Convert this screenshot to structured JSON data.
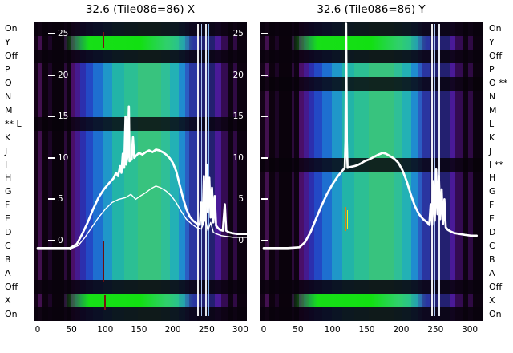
{
  "titles": {
    "left": "32.6 (Tile086=86) X",
    "right": "32.6 (Tile086=86) Y"
  },
  "colors": {
    "curve": "#ffffff",
    "bright_green": "#17df17",
    "bright_green2": "#12e012",
    "green_soft": "#2fd06a",
    "dark_overlay": "rgba(9,2,13,0.88)",
    "masked_overlay": "rgba(7,2,10,0.82)",
    "background": "#ffffff",
    "text": "#000000",
    "tick_text": "#ffffff"
  },
  "chart_data": {
    "type": "heatmap",
    "description": "Two tile-scan heatmaps (X and Y) with overlaid white profile curves; channel rows labeled On/Y/Off/P..A/Off/X/On, ** marks masked channels",
    "x_axis": {
      "ticks": [
        0,
        50,
        100,
        150,
        200,
        250,
        300
      ],
      "range": [
        0,
        310
      ]
    },
    "y_axis": {
      "ticks": [
        25,
        20,
        15,
        10,
        5,
        0
      ],
      "range": [
        -2,
        27
      ]
    },
    "rows_top_to_bottom": [
      "On",
      "Y",
      "Off",
      "P",
      "O",
      "N",
      "M",
      "L",
      "K",
      "J",
      "I",
      "H",
      "G",
      "F",
      "E",
      "D",
      "C",
      "B",
      "A",
      "Off",
      "X",
      "On"
    ],
    "row_labels_left_display": [
      "On",
      "Y",
      "Off",
      "P",
      "O",
      "N",
      "M",
      "** L",
      "K",
      "J",
      "I",
      "H",
      "G",
      "F",
      "E",
      "D",
      "C",
      "B",
      "A",
      "Off",
      "X",
      "On"
    ],
    "row_labels_right_display": [
      "On",
      "Y",
      "Off",
      "P",
      "O **",
      "N",
      "M",
      "L",
      "K",
      "J",
      "I **",
      "H",
      "G",
      "F",
      "E",
      "D",
      "C",
      "B",
      "A",
      "Off",
      "X",
      "On"
    ],
    "colormap_stripes": [
      {
        "w": 0.02,
        "c": "#140318"
      },
      {
        "w": 0.018,
        "c": "#42104f"
      },
      {
        "w": 0.03,
        "c": "#0d020f"
      },
      {
        "w": 0.02,
        "c": "#1c0526"
      },
      {
        "w": 0.055,
        "c": "#0a020c"
      },
      {
        "w": 0.012,
        "c": "#2b0a3a"
      },
      {
        "w": 0.02,
        "c": "#0e0312"
      },
      {
        "w": 0.022,
        "c": "#4a0f68"
      },
      {
        "w": 0.022,
        "c": "#451a8f"
      },
      {
        "w": 0.025,
        "c": "#2c2fae"
      },
      {
        "w": 0.035,
        "c": "#2349c5"
      },
      {
        "w": 0.045,
        "c": "#1e6fd0"
      },
      {
        "w": 0.045,
        "c": "#1f97c9"
      },
      {
        "w": 0.055,
        "c": "#22b4a8"
      },
      {
        "w": 0.065,
        "c": "#2cbf94"
      },
      {
        "w": 0.11,
        "c": "#38c37e"
      },
      {
        "w": 0.04,
        "c": "#2fbf97"
      },
      {
        "w": 0.04,
        "c": "#23b1b5"
      },
      {
        "w": 0.03,
        "c": "#1f8ccf"
      },
      {
        "w": 0.022,
        "c": "#2b5dc3"
      },
      {
        "w": 0.035,
        "c": "#2a35a0"
      },
      {
        "w": 0.085,
        "c": "#232070"
      },
      {
        "w": 0.028,
        "c": "#4a1a98"
      },
      {
        "w": 0.03,
        "c": "#340b52"
      },
      {
        "w": 0.026,
        "c": "#0e0313"
      },
      {
        "w": 0.02,
        "c": "#2f0a44"
      },
      {
        "w": 0.045,
        "c": "#0c0210"
      }
    ],
    "bright_vlines": [
      {
        "x": 0.768,
        "c": "#ffffff",
        "w": 2
      },
      {
        "x": 0.785,
        "c": "#b9d2ff",
        "w": 1
      },
      {
        "x": 0.803,
        "c": "#f4f8ff",
        "w": 2
      },
      {
        "x": 0.818,
        "c": "#8fc6ff",
        "w": 1
      },
      {
        "x": 0.833,
        "c": "#dfe8ff",
        "w": 1
      }
    ],
    "panels": [
      {
        "id": "X",
        "title": "32.6 (Tile086=86) X",
        "masked_rows": [
          "L"
        ],
        "marks": [
          {
            "x": 0.325,
            "y1": 0.033,
            "y2": 0.085,
            "c": "#7a1111",
            "w": 2
          },
          {
            "x": 0.325,
            "y1": 0.73,
            "y2": 0.87,
            "c": "#6b0f0f",
            "w": 2
          },
          {
            "x": 0.33,
            "y1": 0.915,
            "y2": 0.965,
            "c": "#7a1111",
            "w": 2
          }
        ],
        "profile_main": [
          [
            0,
            -0.9
          ],
          [
            30,
            -0.9
          ],
          [
            48,
            -0.9
          ],
          [
            58,
            -0.4
          ],
          [
            66,
            0.8
          ],
          [
            74,
            2.2
          ],
          [
            82,
            3.8
          ],
          [
            90,
            5.2
          ],
          [
            98,
            6.2
          ],
          [
            106,
            7.0
          ],
          [
            112,
            7.5
          ],
          [
            116,
            8.2
          ],
          [
            119,
            7.8
          ],
          [
            122,
            9.0
          ],
          [
            124,
            8.2
          ],
          [
            126,
            10.5
          ],
          [
            128,
            8.8
          ],
          [
            130,
            15.0
          ],
          [
            131,
            9.2
          ],
          [
            133,
            10.2
          ],
          [
            135,
            16.2
          ],
          [
            136,
            9.6
          ],
          [
            139,
            9.8
          ],
          [
            141,
            12.5
          ],
          [
            143,
            10.0
          ],
          [
            146,
            10.3
          ],
          [
            150,
            10.6
          ],
          [
            155,
            10.4
          ],
          [
            160,
            10.7
          ],
          [
            165,
            10.9
          ],
          [
            170,
            10.7
          ],
          [
            175,
            11.0
          ],
          [
            180,
            10.9
          ],
          [
            185,
            10.7
          ],
          [
            190,
            10.4
          ],
          [
            195,
            10.0
          ],
          [
            200,
            9.4
          ],
          [
            205,
            8.4
          ],
          [
            210,
            6.8
          ],
          [
            215,
            5.2
          ],
          [
            220,
            3.8
          ],
          [
            225,
            2.9
          ],
          [
            230,
            2.4
          ],
          [
            235,
            2.1
          ],
          [
            240,
            1.9
          ],
          [
            242,
            4.6
          ],
          [
            244,
            2.0
          ],
          [
            246,
            7.8
          ],
          [
            248,
            2.6
          ],
          [
            250,
            9.2
          ],
          [
            252,
            3.4
          ],
          [
            254,
            7.6
          ],
          [
            256,
            2.8
          ],
          [
            258,
            6.4
          ],
          [
            260,
            2.2
          ],
          [
            262,
            5.4
          ],
          [
            264,
            1.8
          ],
          [
            267,
            1.5
          ],
          [
            270,
            1.3
          ],
          [
            274,
            1.2
          ],
          [
            277,
            4.4
          ],
          [
            279,
            1.2
          ],
          [
            283,
            1.0
          ],
          [
            288,
            0.9
          ],
          [
            295,
            0.8
          ],
          [
            303,
            0.8
          ],
          [
            310,
            0.8
          ]
        ],
        "profile_secondary": [
          [
            48,
            -1.0
          ],
          [
            60,
            -0.6
          ],
          [
            70,
            0.4
          ],
          [
            80,
            1.6
          ],
          [
            90,
            2.8
          ],
          [
            100,
            3.8
          ],
          [
            110,
            4.6
          ],
          [
            120,
            5.0
          ],
          [
            130,
            5.2
          ],
          [
            138,
            5.6
          ],
          [
            145,
            5.0
          ],
          [
            152,
            5.4
          ],
          [
            160,
            5.8
          ],
          [
            168,
            6.3
          ],
          [
            175,
            6.6
          ],
          [
            182,
            6.4
          ],
          [
            190,
            6.0
          ],
          [
            198,
            5.4
          ],
          [
            205,
            4.6
          ],
          [
            212,
            3.6
          ],
          [
            220,
            2.6
          ],
          [
            228,
            2.0
          ],
          [
            235,
            1.6
          ],
          [
            242,
            1.4
          ],
          [
            248,
            2.6
          ],
          [
            252,
            1.2
          ],
          [
            256,
            2.2
          ],
          [
            260,
            1.0
          ],
          [
            265,
            0.8
          ],
          [
            272,
            0.6
          ],
          [
            280,
            0.5
          ],
          [
            290,
            0.4
          ],
          [
            300,
            0.4
          ],
          [
            310,
            0.4
          ]
        ]
      },
      {
        "id": "Y",
        "title": "32.6 (Tile086=86) Y",
        "masked_rows": [
          "O",
          "I"
        ],
        "marks": [
          {
            "x": 0.381,
            "y1": 0.618,
            "y2": 0.7,
            "c": "#e07c14",
            "w": 2
          },
          {
            "x": 0.392,
            "y1": 0.63,
            "y2": 0.69,
            "c": "#ffe814",
            "w": 1
          }
        ],
        "profile_main": [
          [
            0,
            -0.9
          ],
          [
            35,
            -0.9
          ],
          [
            52,
            -0.8
          ],
          [
            60,
            -0.2
          ],
          [
            68,
            1.0
          ],
          [
            76,
            2.6
          ],
          [
            84,
            4.2
          ],
          [
            92,
            5.6
          ],
          [
            100,
            6.8
          ],
          [
            108,
            7.8
          ],
          [
            114,
            8.4
          ],
          [
            117,
            8.7
          ],
          [
            118,
            8.8
          ],
          [
            119,
            12.0
          ],
          [
            120,
            26.2
          ],
          [
            121,
            12.0
          ],
          [
            122,
            8.8
          ],
          [
            126,
            8.9
          ],
          [
            132,
            9.0
          ],
          [
            136,
            9.1
          ],
          [
            141,
            9.3
          ],
          [
            147,
            9.6
          ],
          [
            153,
            9.8
          ],
          [
            160,
            10.1
          ],
          [
            167,
            10.4
          ],
          [
            173,
            10.6
          ],
          [
            178,
            10.5
          ],
          [
            184,
            10.2
          ],
          [
            190,
            9.9
          ],
          [
            196,
            9.4
          ],
          [
            202,
            8.5
          ],
          [
            208,
            7.2
          ],
          [
            214,
            5.6
          ],
          [
            220,
            4.2
          ],
          [
            226,
            3.2
          ],
          [
            232,
            2.6
          ],
          [
            238,
            2.2
          ],
          [
            241,
            1.9
          ],
          [
            243,
            4.4
          ],
          [
            245,
            1.9
          ],
          [
            247,
            7.2
          ],
          [
            249,
            2.4
          ],
          [
            251,
            8.6
          ],
          [
            253,
            3.2
          ],
          [
            255,
            7.8
          ],
          [
            257,
            2.6
          ],
          [
            259,
            6.2
          ],
          [
            261,
            2.0
          ],
          [
            263,
            5.0
          ],
          [
            265,
            1.6
          ],
          [
            268,
            1.3
          ],
          [
            272,
            1.1
          ],
          [
            278,
            0.9
          ],
          [
            285,
            0.8
          ],
          [
            293,
            0.7
          ],
          [
            302,
            0.6
          ],
          [
            310,
            0.6
          ]
        ]
      }
    ]
  }
}
